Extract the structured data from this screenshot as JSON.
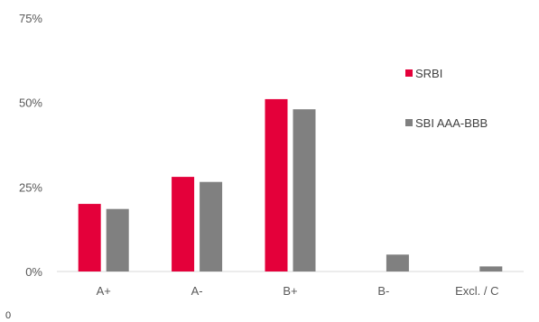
{
  "chart_data": {
    "type": "bar",
    "categories": [
      "A+",
      "A-",
      "B+",
      "B-",
      "Excl. / C"
    ],
    "series": [
      {
        "name": "SRBI",
        "color": "#E4003A",
        "values": [
          20,
          28,
          51,
          null,
          null
        ]
      },
      {
        "name": "SBI AAA-BBB",
        "color": "#808080",
        "values": [
          18.5,
          26.5,
          48,
          5,
          1.5
        ]
      }
    ],
    "y_ticks": [
      "0%",
      "25%",
      "50%",
      "75%"
    ],
    "ylim": [
      0,
      75
    ],
    "grid": false,
    "legend_position": "right",
    "footnote": "0"
  }
}
